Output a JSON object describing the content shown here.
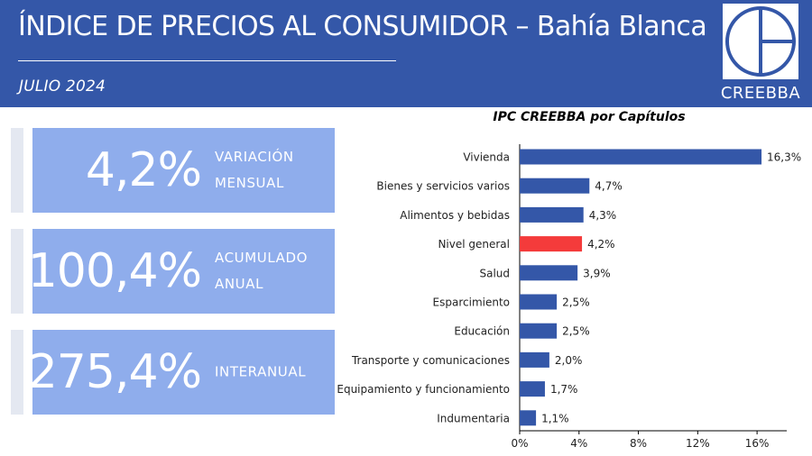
{
  "header": {
    "title": "ÍNDICE DE PRECIOS AL CONSUMIDOR – Bahía Blanca",
    "period": "JULIO 2024",
    "logo_text": "CREEBBA"
  },
  "colors": {
    "banner": "#3457a8",
    "kpi_box": "#8fadec",
    "bar": "#3457a8",
    "bar_highlight": "#f43b3b"
  },
  "kpis": [
    {
      "value": "4,2%",
      "label_lines": [
        "VARIACIÓN",
        "MENSUAL"
      ]
    },
    {
      "value": "100,4%",
      "label_lines": [
        "ACUMULADO",
        "ANUAL"
      ]
    },
    {
      "value": "275,4%",
      "label_lines": [
        "INTERANUAL"
      ]
    }
  ],
  "chart_data": {
    "type": "bar",
    "orientation": "horizontal",
    "title": "IPC CREEBBA por Capítulos",
    "categories": [
      "Vivienda",
      "Bienes y servicios varios",
      "Alimentos y bebidas",
      "Nivel general",
      "Salud",
      "Esparcimiento",
      "Educación",
      "Transporte y comunicaciones",
      "Equipamiento y funcionamiento",
      "Indumentaria"
    ],
    "values": [
      16.3,
      4.7,
      4.3,
      4.2,
      3.9,
      2.5,
      2.5,
      2.0,
      1.7,
      1.1
    ],
    "value_labels": [
      "16,3%",
      "4,7%",
      "4,3%",
      "4,2%",
      "3,9%",
      "2,5%",
      "2,5%",
      "2,0%",
      "1,7%",
      "1,1%"
    ],
    "highlight": "Nivel general",
    "xlim": [
      0,
      18
    ],
    "xticks": [
      0,
      4,
      8,
      12,
      16
    ],
    "xtick_labels": [
      "0%",
      "4%",
      "8%",
      "12%",
      "16%"
    ],
    "xlabel": "",
    "ylabel": "",
    "grid": false,
    "legend": "none"
  }
}
